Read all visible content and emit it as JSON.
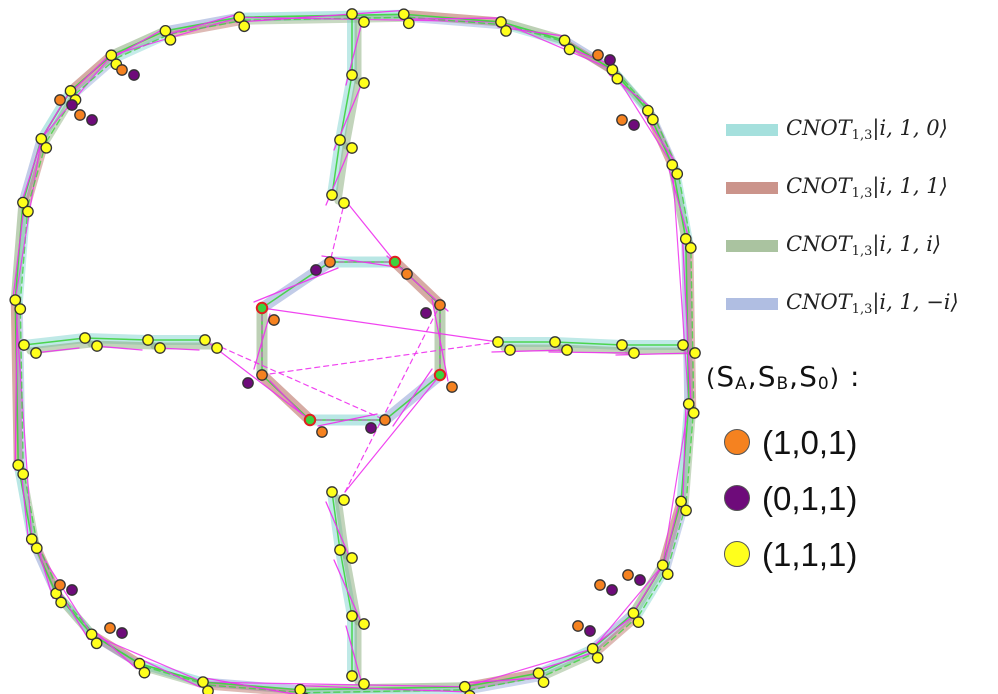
{
  "colors": {
    "teal": "#7fd3cf",
    "red": "#b5665a",
    "sage": "#86aa78",
    "lavender": "#8fa3d6",
    "magenta": "#ee30ee",
    "green": "#3ed23e",
    "orange": "#f58220",
    "purple": "#6e0b7a",
    "yellow": "#ffff1c",
    "dot_edge": "#333333",
    "ring_red": "#e02020"
  },
  "legend_lines": [
    {
      "label": "CNOT",
      "sub": "1,3",
      "ket": "|i, 1, 0⟩",
      "color": "#7fd3cf"
    },
    {
      "label": "CNOT",
      "sub": "1,3",
      "ket": "|i, 1, 1⟩",
      "color": "#b5665a"
    },
    {
      "label": "CNOT",
      "sub": "1,3",
      "ket": "|i, 1, i⟩",
      "color": "#86aa78"
    },
    {
      "label": "CNOT",
      "sub": "1,3",
      "ket": "|i, 1, −i⟩",
      "color": "#8fa3d6"
    }
  ],
  "points_legend": {
    "open": "(",
    "a": "S",
    "a_sub": "A",
    "b": "S",
    "b_sub": "B",
    "c": "S",
    "c_sub": "0",
    "close": ")",
    "colon": ":",
    "sep": ","
  },
  "point_classes": [
    {
      "label": "(1,0,1)",
      "color": "#f58220",
      "icon": "orange-dot-icon"
    },
    {
      "label": "(0,1,1)",
      "color": "#6e0b7a",
      "icon": "purple-dot-icon"
    },
    {
      "label": "(1,1,1)",
      "color": "#ffff1c",
      "icon": "yellow-dot-icon"
    }
  ]
}
